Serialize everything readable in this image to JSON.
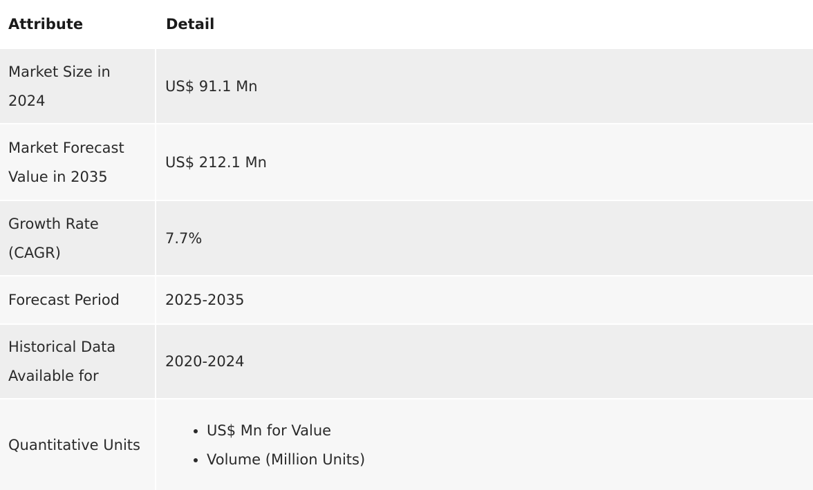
{
  "table": {
    "headers": [
      "Attribute",
      "Detail"
    ],
    "rows": [
      {
        "attribute": "Market Size in 2024",
        "detail": "US$ 91.1 Mn"
      },
      {
        "attribute": "Market Forecast Value in 2035",
        "detail": "US$ 212.1 Mn"
      },
      {
        "attribute": "Growth Rate (CAGR)",
        "detail": "7.7%"
      },
      {
        "attribute": "Forecast Period",
        "detail": "2025-2035"
      },
      {
        "attribute": "Historical Data Available for",
        "detail": "2020-2024"
      },
      {
        "attribute": "Quantitative Units",
        "detail_list": [
          "US$ Mn for Value",
          "Volume (Million Units)"
        ]
      }
    ]
  },
  "colors": {
    "row_odd": "#eeeeee",
    "row_even": "#f7f7f7",
    "header_bg": "#ffffff",
    "text": "#222222"
  }
}
